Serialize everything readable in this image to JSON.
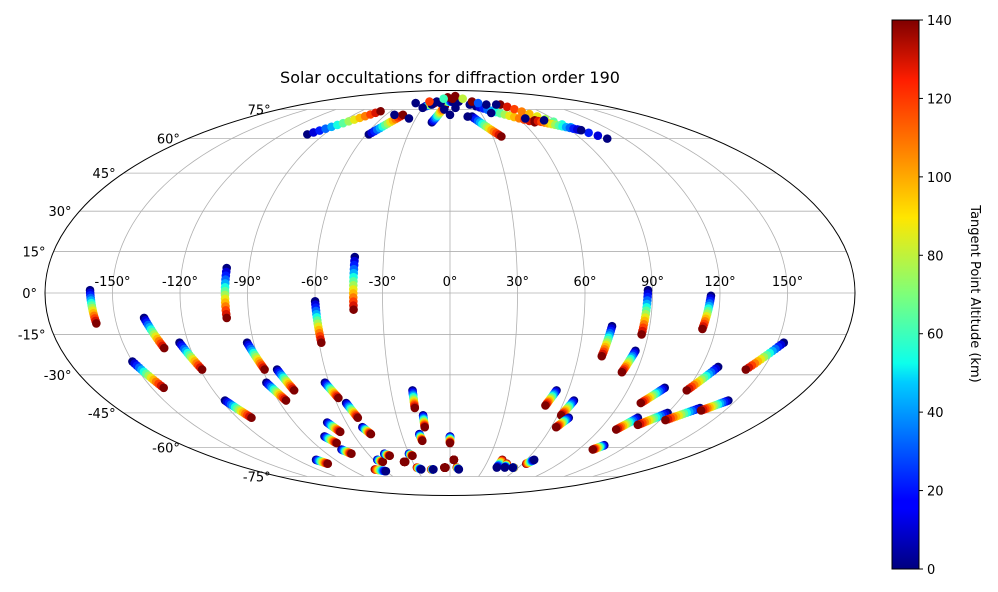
{
  "chart_data": {
    "type": "scatter",
    "projection": "mollweide",
    "title": "Solar occultations for diffraction order 190",
    "longitude_ticks": [
      {
        "value": -150,
        "label": "-150°"
      },
      {
        "value": -120,
        "label": "-120°"
      },
      {
        "value": -90,
        "label": "-90°"
      },
      {
        "value": -60,
        "label": "-60°"
      },
      {
        "value": -30,
        "label": "-30°"
      },
      {
        "value": 0,
        "label": "0°"
      },
      {
        "value": 30,
        "label": "30°"
      },
      {
        "value": 60,
        "label": "60°"
      },
      {
        "value": 90,
        "label": "90°"
      },
      {
        "value": 120,
        "label": "120°"
      },
      {
        "value": 150,
        "label": "150°"
      }
    ],
    "latitude_ticks": [
      {
        "value": 75,
        "label": "75°"
      },
      {
        "value": 60,
        "label": "60°"
      },
      {
        "value": 45,
        "label": "45°"
      },
      {
        "value": 30,
        "label": "30°"
      },
      {
        "value": 15,
        "label": "15°"
      },
      {
        "value": 0,
        "label": "0°"
      },
      {
        "value": -15,
        "label": "-15°"
      },
      {
        "value": -30,
        "label": "-30°"
      },
      {
        "value": -45,
        "label": "-45°"
      },
      {
        "value": -60,
        "label": "-60°"
      },
      {
        "value": -75,
        "label": "-75°"
      }
    ],
    "colorbar": {
      "label": "Tangent Point Altitude (km)",
      "colormap": "jet",
      "range": [
        0,
        140
      ],
      "ticks": [
        {
          "value": 0,
          "label": "0"
        },
        {
          "value": 20,
          "label": "20"
        },
        {
          "value": 40,
          "label": "40"
        },
        {
          "value": 60,
          "label": "60"
        },
        {
          "value": 80,
          "label": "80"
        },
        {
          "value": 100,
          "label": "100"
        },
        {
          "value": 120,
          "label": "120"
        },
        {
          "value": 140,
          "label": "140"
        }
      ]
    },
    "tracks": [
      {
        "start": [
          -160,
          1
        ],
        "end": [
          -159,
          -11
        ],
        "alt": [
          0,
          140
        ]
      },
      {
        "start": [
          -150,
          -25
        ],
        "end": [
          -144,
          -35
        ],
        "alt": [
          0,
          140
        ]
      },
      {
        "start": [
          -137,
          -9
        ],
        "end": [
          -132,
          -20
        ],
        "alt": [
          0,
          140
        ]
      },
      {
        "start": [
          -124,
          -18
        ],
        "end": [
          -119,
          -28
        ],
        "alt": [
          0,
          140
        ]
      },
      {
        "start": [
          -118,
          -40
        ],
        "end": [
          -112,
          -47
        ],
        "alt": [
          0,
          140
        ]
      },
      {
        "start": [
          -105,
          -66
        ],
        "end": [
          -101,
          -68
        ],
        "alt": [
          0,
          140
        ]
      },
      {
        "start": [
          -100,
          9
        ],
        "end": [
          -100,
          -9
        ],
        "alt": [
          0,
          140
        ]
      },
      {
        "start": [
          -93,
          -18
        ],
        "end": [
          -89,
          -28
        ],
        "alt": [
          0,
          140
        ]
      },
      {
        "start": [
          -91,
          -33
        ],
        "end": [
          -86,
          -40
        ],
        "alt": [
          0,
          140
        ]
      },
      {
        "start": [
          -83,
          -28
        ],
        "end": [
          -79,
          -36
        ],
        "alt": [
          0,
          140
        ]
      },
      {
        "start": [
          -79,
          -55
        ],
        "end": [
          -75,
          -58
        ],
        "alt": [
          0,
          140
        ]
      },
      {
        "start": [
          -76,
          -61
        ],
        "end": [
          -72,
          -63
        ],
        "alt": [
          0,
          140
        ]
      },
      {
        "start": [
          -71,
          -49
        ],
        "end": [
          -67,
          -53
        ],
        "alt": [
          0,
          140
        ]
      },
      {
        "start": [
          -68,
          -71
        ],
        "end": [
          -60,
          -72
        ],
        "alt": [
          140,
          0
        ]
      },
      {
        "start": [
          -62,
          -33
        ],
        "end": [
          -58,
          -39
        ],
        "alt": [
          0,
          140
        ]
      },
      {
        "start": [
          -60,
          -3
        ],
        "end": [
          -59,
          -18
        ],
        "alt": [
          0,
          140
        ]
      },
      {
        "start": [
          -57,
          -66
        ],
        "end": [
          -54,
          -67
        ],
        "alt": [
          0,
          140
        ]
      },
      {
        "start": [
          -55,
          -41
        ],
        "end": [
          -52,
          -47
        ],
        "alt": [
          0,
          140
        ]
      },
      {
        "start": [
          -52,
          -51
        ],
        "end": [
          -49,
          -54
        ],
        "alt": [
          0,
          140
        ]
      },
      {
        "start": [
          -48,
          -63
        ],
        "end": [
          -45,
          -64
        ],
        "alt": [
          0,
          140
        ]
      },
      {
        "start": [
          -43,
          13
        ],
        "end": [
          -43,
          -6
        ],
        "alt": [
          0,
          140
        ]
      },
      {
        "start": [
          -37,
          -67
        ],
        "end": [
          -36,
          -67
        ],
        "alt": [
          140,
          140
        ]
      },
      {
        "start": [
          -30,
          -63
        ],
        "end": [
          -28,
          -64
        ],
        "alt": [
          0,
          140
        ]
      },
      {
        "start": [
          -29,
          -70
        ],
        "end": [
          -26,
          -71
        ],
        "alt": [
          140,
          0
        ]
      },
      {
        "start": [
          -19,
          -36
        ],
        "end": [
          -19,
          -43
        ],
        "alt": [
          0,
          140
        ]
      },
      {
        "start": [
          -19,
          -54
        ],
        "end": [
          -18,
          -57
        ],
        "alt": [
          0,
          140
        ]
      },
      {
        "start": [
          -17,
          -71
        ],
        "end": [
          -15,
          -71
        ],
        "alt": [
          140,
          0
        ]
      },
      {
        "start": [
          -15,
          -46
        ],
        "end": [
          -15,
          -51
        ],
        "alt": [
          0,
          140
        ]
      },
      {
        "start": [
          -5,
          -70
        ],
        "end": [
          -4,
          -70
        ],
        "alt": [
          140,
          140
        ]
      },
      {
        "start": [
          0,
          -55
        ],
        "end": [
          0,
          -58
        ],
        "alt": [
          0,
          140
        ]
      },
      {
        "start": [
          3,
          -66
        ],
        "end": [
          3,
          -66
        ],
        "alt": [
          140,
          140
        ]
      },
      {
        "start": [
          6,
          -70
        ],
        "end": [
          8,
          -71
        ],
        "alt": [
          140,
          0
        ]
      },
      {
        "start": [
          41,
          -66
        ],
        "end": [
          41,
          -70
        ],
        "alt": [
          140,
          0
        ]
      },
      {
        "start": [
          47,
          -68
        ],
        "end": [
          48,
          -70
        ],
        "alt": [
          140,
          0
        ]
      },
      {
        "start": [
          54,
          -36
        ],
        "end": [
          51,
          -42
        ],
        "alt": [
          0,
          140
        ]
      },
      {
        "start": [
          56,
          -70
        ],
        "end": [
          55,
          -70
        ],
        "alt": [
          140,
          0
        ]
      },
      {
        "start": [
          63,
          -68
        ],
        "end": [
          66,
          -66
        ],
        "alt": [
          140,
          0
        ]
      },
      {
        "start": [
          65,
          -40
        ],
        "end": [
          62,
          -46
        ],
        "alt": [
          0,
          140
        ]
      },
      {
        "start": [
          67,
          -47
        ],
        "end": [
          63,
          -51
        ],
        "alt": [
          0,
          140
        ]
      },
      {
        "start": [
          73,
          -12
        ],
        "end": [
          71,
          -23
        ],
        "alt": [
          0,
          140
        ]
      },
      {
        "start": [
          86,
          -21
        ],
        "end": [
          83,
          -29
        ],
        "alt": [
          0,
          140
        ]
      },
      {
        "start": [
          88,
          1
        ],
        "end": [
          87,
          -15
        ],
        "alt": [
          0,
          140
        ]
      },
      {
        "start": [
          108,
          -35
        ],
        "end": [
          101,
          -41
        ],
        "alt": [
          0,
          140
        ]
      },
      {
        "start": [
          106,
          -47
        ],
        "end": [
          100,
          -52
        ],
        "alt": [
          0,
          140
        ]
      },
      {
        "start": [
          104,
          -59
        ],
        "end": [
          100,
          -61
        ],
        "alt": [
          0,
          140
        ]
      },
      {
        "start": [
          116,
          -1
        ],
        "end": [
          114,
          -13
        ],
        "alt": [
          0,
          140
        ]
      },
      {
        "start": [
          120,
          -45
        ],
        "end": [
          110,
          -50
        ],
        "alt": [
          0,
          140
        ]
      },
      {
        "start": [
          128,
          -27
        ],
        "end": [
          120,
          -36
        ],
        "alt": [
          0,
          140
        ]
      },
      {
        "start": [
          135,
          -43
        ],
        "end": [
          123,
          -48
        ],
        "alt": [
          0,
          140
        ]
      },
      {
        "start": [
          153,
          -18
        ],
        "end": [
          142,
          -28
        ],
        "alt": [
          0,
          140
        ]
      },
      {
        "start": [
          146,
          -40
        ],
        "end": [
          137,
          -44
        ],
        "alt": [
          0,
          140
        ]
      },
      {
        "start": [
          -102,
          62
        ],
        "end": [
          -70,
          74
        ],
        "alt": [
          0,
          140
        ]
      },
      {
        "start": [
          -58,
          62
        ],
        "end": [
          -44,
          72
        ],
        "alt": [
          0,
          140
        ]
      },
      {
        "start": [
          -15,
          68
        ],
        "end": [
          -6,
          77
        ],
        "alt": [
          0,
          140
        ]
      },
      {
        "start": [
          20,
          71
        ],
        "end": [
          36,
          61
        ],
        "alt": [
          0,
          140
        ]
      },
      {
        "start": [
          30,
          77
        ],
        "end": [
          70,
          68
        ],
        "alt": [
          0,
          140
        ]
      },
      {
        "start": [
          61,
          78
        ],
        "end": [
          108,
          60
        ],
        "alt": [
          140,
          0
        ]
      },
      {
        "start": [
          72,
          69
        ],
        "end": [
          98,
          64
        ],
        "alt": [
          140,
          0
        ]
      },
      {
        "start": [
          -28,
          77
        ],
        "end": [
          -20,
          79
        ],
        "alt": [
          0,
          140
        ]
      },
      {
        "start": [
          -8,
          80
        ],
        "end": [
          4,
          80
        ],
        "alt": [
          140,
          0
        ]
      }
    ],
    "points": [
      {
        "lon": -30,
        "lat": 76,
        "alt": 0
      },
      {
        "lon": -22,
        "lat": 78,
        "alt": 0
      },
      {
        "lon": -18,
        "lat": 80,
        "alt": 0
      },
      {
        "lon": -12,
        "lat": 79,
        "alt": 0
      },
      {
        "lon": -6,
        "lat": 75,
        "alt": 0
      },
      {
        "lon": 0,
        "lat": 72,
        "alt": 0
      },
      {
        "lon": 6,
        "lat": 76,
        "alt": 0
      },
      {
        "lon": 12,
        "lat": 80,
        "alt": 0
      },
      {
        "lon": 16,
        "lat": 71,
        "alt": 0
      },
      {
        "lon": 24,
        "lat": 78,
        "alt": 0
      },
      {
        "lon": 40,
        "lat": 73,
        "alt": 0
      },
      {
        "lon": 44,
        "lat": 78,
        "alt": 0
      },
      {
        "lon": 56,
        "lat": 78,
        "alt": 0
      },
      {
        "lon": 66,
        "lat": 70,
        "alt": 0
      },
      {
        "lon": 80,
        "lat": 69,
        "alt": 0
      },
      {
        "lon": -44,
        "lat": 79,
        "alt": 0
      },
      {
        "lon": -52,
        "lat": 72,
        "alt": 0
      },
      {
        "lon": -36,
        "lat": 70,
        "alt": 0
      },
      {
        "lon": 4,
        "lat": 82,
        "alt": 140
      },
      {
        "lon": -4,
        "lat": 83,
        "alt": 140
      },
      {
        "lon": 10,
        "lat": 84,
        "alt": 140
      },
      {
        "lon": 30,
        "lat": 80,
        "alt": 140
      },
      {
        "lon": -10,
        "lat": 82,
        "alt": 60
      },
      {
        "lon": 20,
        "lat": 82,
        "alt": 80
      },
      {
        "lon": -28,
        "lat": 80,
        "alt": 120
      },
      {
        "lon": 36,
        "lat": 79,
        "alt": 30
      }
    ]
  }
}
